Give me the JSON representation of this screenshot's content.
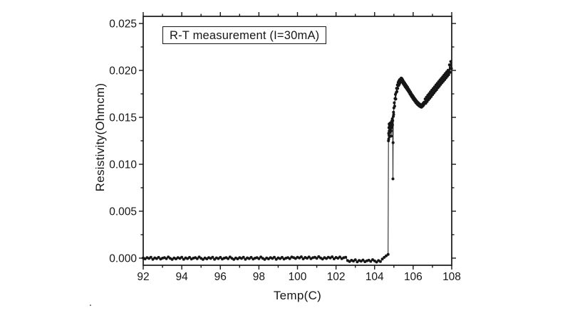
{
  "page": {
    "background": "#ffffff",
    "ink_color": "#161616"
  },
  "chart_data": {
    "type": "scatter",
    "title": "R-T measurement (I=30mA)",
    "xlabel": "Temp(C)",
    "ylabel": "Resistivity(Ohmcm)",
    "xlim": [
      92,
      108
    ],
    "ylim": [
      -0.00076,
      0.02576
    ],
    "grid": false,
    "legend": null,
    "marker_color": "#161616",
    "line_color": "#161616",
    "x_major_ticks": [
      92,
      94,
      96,
      98,
      100,
      102,
      104,
      106,
      108
    ],
    "x_major_tick_labels": [
      "92",
      "94",
      "96",
      "98",
      "100",
      "102",
      "104",
      "106",
      "108"
    ],
    "x_minor_ticks": [
      93,
      95,
      97,
      99,
      101,
      103,
      105,
      107
    ],
    "y_major_ticks": [
      0.0,
      0.005,
      0.01,
      0.015,
      0.02,
      0.025
    ],
    "y_major_tick_labels": [
      "0.000",
      "0.005",
      "0.010",
      "0.015",
      "0.020",
      "0.025"
    ],
    "y_minor_ticks": [
      0.0025,
      0.0075,
      0.0125,
      0.0175,
      0.0225
    ],
    "series": [
      {
        "name": "resistivity",
        "y_scale": 1e-05,
        "segments": [
          {
            "x0": 92.0,
            "dx": 0.1,
            "y": [
              2,
              -8,
              5,
              -3,
              10,
              -12,
              3,
              -5,
              8,
              -10,
              0,
              6,
              -6,
              12,
              -2,
              -14,
              2,
              -8,
              5,
              -3,
              10,
              -12,
              3,
              -5,
              8,
              -10,
              0,
              6,
              -6,
              12,
              -2,
              -14,
              2,
              -8,
              5,
              -3,
              10,
              -12,
              3,
              -5,
              8,
              -10,
              0,
              6,
              -6,
              12,
              -2,
              -14,
              2,
              -8,
              5,
              -3,
              10,
              -12,
              3,
              -5,
              8,
              -10,
              0,
              6,
              -6,
              12,
              -2,
              -14,
              2,
              -8,
              5,
              -3,
              10,
              -12,
              3,
              -5,
              8,
              -10,
              0,
              6,
              -6,
              12
            ]
          },
          {
            "x0": 99.8,
            "dx": 0.1,
            "y": [
              6,
              -4,
              9,
              1,
              14,
              -8,
              7,
              -1,
              12,
              -6,
              4,
              10,
              -2,
              16,
              2,
              -10,
              6,
              -4,
              9,
              1,
              14,
              -8,
              7,
              -1,
              12,
              -6,
              4,
              10
            ]
          },
          {
            "x0": 102.6,
            "dx": 0.1,
            "y": [
              -26,
              -36,
              -23,
              -31,
              -18,
              -40,
              -25,
              -33,
              -20,
              -38,
              -28,
              -22,
              -34,
              -16,
              -30,
              -42,
              -26,
              -36
            ]
          },
          {
            "x0": 104.4,
            "dx": 0.1,
            "y": [
              -10,
              8,
              25,
              40
            ]
          },
          {
            "points": [
              [
                104.72,
                1250
              ],
              [
                104.73,
                1330
              ],
              [
                104.735,
                1270
              ],
              [
                104.74,
                1390
              ],
              [
                104.75,
                1310
              ],
              [
                104.755,
                1430
              ],
              [
                104.76,
                1355
              ],
              [
                104.77,
                1295
              ],
              [
                104.775,
                1415
              ],
              [
                104.78,
                1340
              ],
              [
                104.79,
                1380
              ],
              [
                104.8,
                1420
              ],
              [
                104.81,
                1345
              ],
              [
                104.82,
                1440
              ],
              [
                104.83,
                1375
              ],
              [
                104.84,
                1405
              ],
              [
                104.85,
                1355
              ],
              [
                104.86,
                1300
              ],
              [
                104.87,
                1390
              ],
              [
                104.88,
                1430
              ],
              [
                104.89,
                1460
              ],
              [
                104.9,
                1400
              ],
              [
                104.91,
                1445
              ],
              [
                104.92,
                1485
              ],
              [
                104.93,
                1420
              ],
              [
                104.94,
                1465
              ],
              [
                104.95,
                845
              ],
              [
                104.96,
                1230
              ],
              [
                104.97,
                1510
              ],
              [
                104.98,
                1555
              ],
              [
                104.99,
                1530
              ]
            ]
          },
          {
            "x0": 105.0,
            "dx": 0.02,
            "y": [
              1600,
              1655,
              1620,
              1700,
              1745,
              1695,
              1765,
              1810,
              1775,
              1845,
              1808,
              1872,
              1838,
              1888,
              1852,
              1902,
              1868,
              1908,
              1878,
              1918,
              1885,
              1912,
              1875
            ]
          },
          {
            "x0": 105.46,
            "dx": 0.025,
            "y": [
              1898,
              1858,
              1882,
              1842,
              1866,
              1826,
              1850,
              1812,
              1836,
              1796,
              1820,
              1782,
              1802,
              1766,
              1786,
              1748,
              1770,
              1732,
              1752,
              1716,
              1736,
              1700,
              1722,
              1686,
              1706,
              1672,
              1692,
              1658,
              1678,
              1646,
              1666,
              1636,
              1656,
              1626,
              1646,
              1618,
              1638,
              1612
            ]
          },
          {
            "x0": 106.41,
            "dx": 0.02,
            "y": [
              1632,
              1608,
              1628,
              1616,
              1642,
              1622,
              1652,
              1634,
              1662,
              1648
            ]
          },
          {
            "x0": 106.62,
            "dx": 0.035,
            "y": [
              1695,
              1650,
              1715,
              1668,
              1735,
              1688,
              1752,
              1705,
              1772,
              1722,
              1790,
              1742,
              1808,
              1760,
              1825,
              1778,
              1845,
              1795,
              1862,
              1815,
              1880,
              1832,
              1898,
              1850,
              1915,
              1868,
              1932,
              1885,
              1950,
              1902,
              1968,
              1920,
              1985,
              1938,
              2002,
              1955,
              2060,
              1980,
              2095,
              2020
            ]
          }
        ]
      }
    ],
    "annotations": {
      "stray_mark": "."
    }
  }
}
